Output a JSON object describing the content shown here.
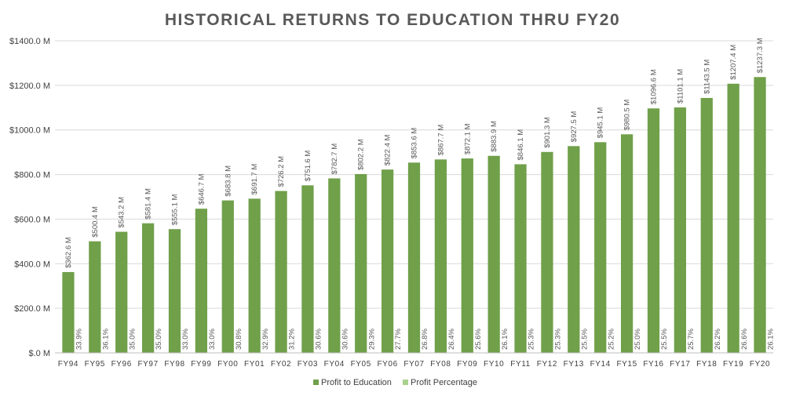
{
  "chart_data": {
    "type": "bar",
    "title": "HISTORICAL RETURNS TO EDUCATION THRU FY20",
    "categories": [
      "FY94",
      "FY95",
      "FY96",
      "FY97",
      "FY98",
      "FY99",
      "FY00",
      "FY01",
      "FY02",
      "FY03",
      "FY04",
      "FY05",
      "FY06",
      "FY07",
      "FY08",
      "FY09",
      "FY10",
      "FY11",
      "FY12",
      "FY13",
      "FY14",
      "FY15",
      "FY16",
      "FY17",
      "FY18",
      "FY19",
      "FY20"
    ],
    "series": [
      {
        "name": "Profit to Education",
        "values": [
          362.6,
          500.4,
          543.2,
          581.4,
          555.1,
          646.7,
          683.8,
          691.7,
          726.2,
          751.6,
          782.7,
          802.2,
          822.4,
          853.6,
          867.7,
          872.1,
          883.9,
          846.1,
          901.3,
          927.5,
          945.1,
          980.5,
          1096.6,
          1101.1,
          1143.5,
          1207.4,
          1237.3
        ],
        "labels": [
          "$362.6 M",
          "$500.4 M",
          "$543.2 M",
          "$581.4 M",
          "$555.1 M",
          "$646.7 M",
          "$683.8 M",
          "$691.7 M",
          "$726.2 M",
          "$751.6 M",
          "$782.7 M",
          "$802.2 M",
          "$822.4 M",
          "$853.6 M",
          "$867.7 M",
          "$872.1 M",
          "$883.9 M",
          "$846.1 M",
          "$901.3 M",
          "$927.5 M",
          "$945.1 M",
          "$980.5 M",
          "$1096.6 M",
          "$1101.1 M",
          "$1143.5 M",
          "$1207.4 M",
          "$1237.3 M"
        ],
        "color": "#70a04a"
      },
      {
        "name": "Profit Percentage",
        "values": [
          33.9,
          36.1,
          35.0,
          35.0,
          33.0,
          33.0,
          30.8,
          32.9,
          31.2,
          30.6,
          30.6,
          29.3,
          27.7,
          26.8,
          26.4,
          25.6,
          26.1,
          25.3,
          25.3,
          25.5,
          25.2,
          25.0,
          25.5,
          25.7,
          26.2,
          26.6,
          26.1
        ],
        "labels": [
          "33.9%",
          "36.1%",
          "35.0%",
          "35.0%",
          "33.0%",
          "33.0%",
          "30.8%",
          "32.9%",
          "31.2%",
          "30.6%",
          "30.6%",
          "29.3%",
          "27.7%",
          "26.8%",
          "26.4%",
          "25.6%",
          "26.1%",
          "25.3%",
          "25.3%",
          "25.5%",
          "25.2%",
          "25.0%",
          "25.5%",
          "25.7%",
          "26.2%",
          "26.6%",
          "26.1%"
        ],
        "color": "#a9d18e"
      }
    ],
    "y_ticks": [
      "$.0 M",
      "$200.0 M",
      "$400.0 M",
      "$600.0 M",
      "$800.0 M",
      "$1000.0 M",
      "$1200.0 M",
      "$1400.0 M"
    ],
    "ylim": [
      0,
      1400
    ],
    "xlabel": "",
    "ylabel": "",
    "grid": true,
    "legend_position": "bottom",
    "colors": {
      "title": "#595959",
      "axis_text": "#404040",
      "gridline": "#d9d9d9",
      "bar_label": "#595959"
    }
  }
}
